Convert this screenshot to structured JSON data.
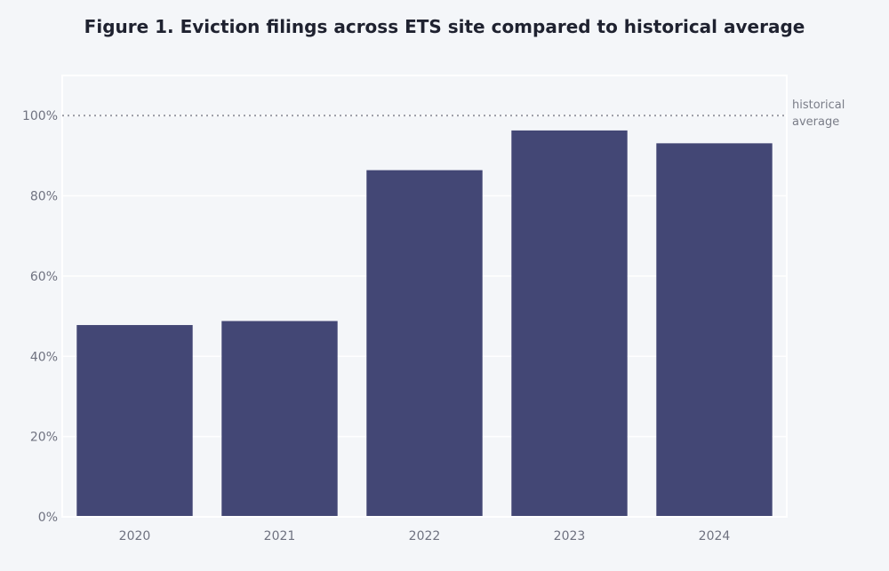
{
  "chart_data": {
    "type": "bar",
    "title": "Figure 1. Eviction filings across ETS site compared to historical average",
    "xlabel": "",
    "ylabel": "",
    "categories": [
      "2020",
      "2021",
      "2022",
      "2023",
      "2024"
    ],
    "values": [
      47.8,
      48.8,
      86.4,
      96.3,
      93.1
    ],
    "unit": "%",
    "ylim": [
      0,
      110
    ],
    "yticks": [
      0,
      20,
      40,
      60,
      80,
      100
    ],
    "ytick_labels": [
      "0%",
      "20%",
      "40%",
      "60%",
      "80%",
      "100%"
    ],
    "grid": true,
    "legend": "none",
    "reference_line": {
      "value": 100,
      "label_lines": [
        "historical",
        "average"
      ],
      "style": "dotted"
    },
    "colors": {
      "bar": "#434775",
      "background": "#f4f6f9",
      "plot_background": "#f4f6f9",
      "grid": "#ffffff",
      "reference_line": "#9a9ca6",
      "axis_text": "#6f7280",
      "title_text": "#1f2230"
    }
  }
}
